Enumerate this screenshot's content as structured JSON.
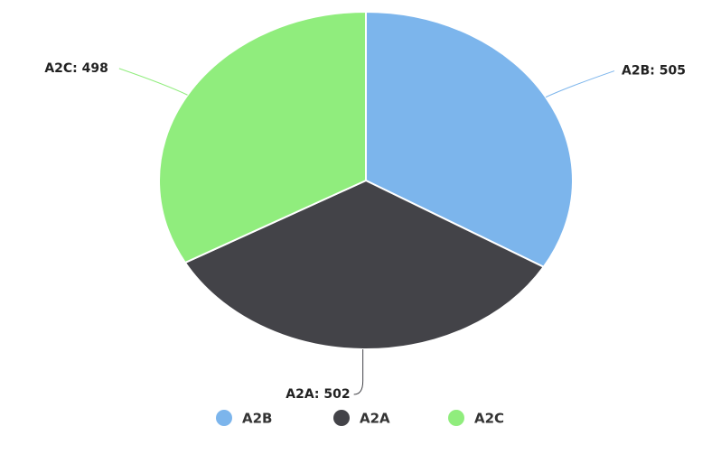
{
  "chart_data": {
    "type": "pie",
    "categories": [
      "A2B",
      "A2A",
      "A2C"
    ],
    "values": [
      505,
      502,
      498
    ],
    "value_labels": [
      "A2B: 505",
      "A2A: 502",
      "A2C: 498"
    ],
    "colors": [
      "#7cb5ec",
      "#434348",
      "#90ed7d"
    ],
    "legend": "bottom"
  }
}
